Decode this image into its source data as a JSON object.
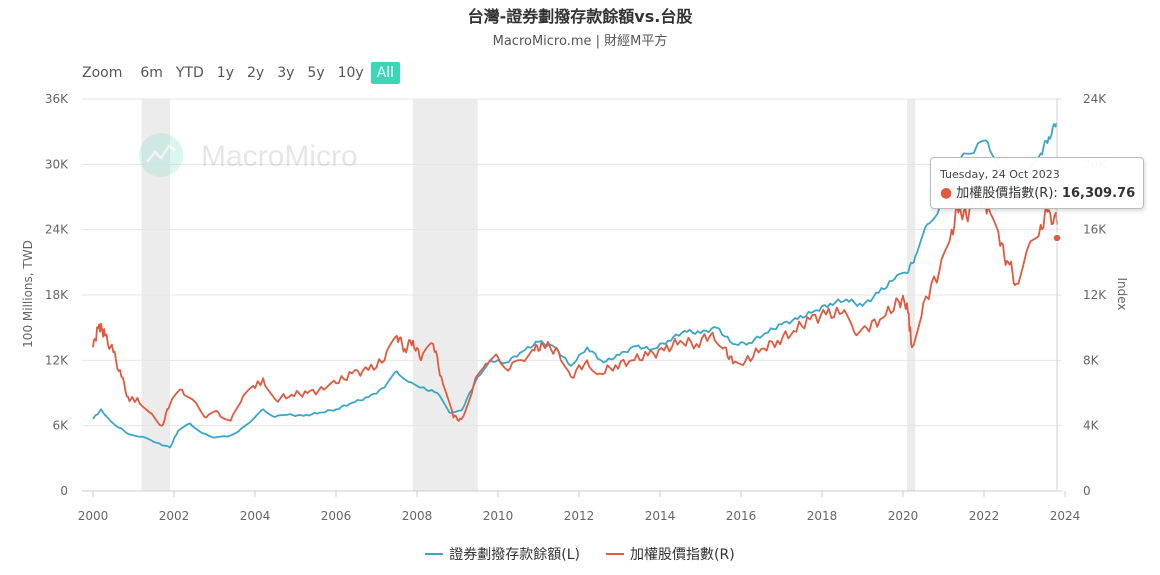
{
  "header": {
    "title": "台灣-證券劃撥存款餘額vs.台股",
    "subtitle": "MacroMicro.me | 財經M平方"
  },
  "watermark": "MacroMicro",
  "zoom": {
    "label": "Zoom",
    "buttons": [
      "6m",
      "YTD",
      "1y",
      "2y",
      "3y",
      "5y",
      "10y",
      "All"
    ],
    "active": "All"
  },
  "tooltip": {
    "date": "Tuesday, 24 Oct 2023",
    "series": "加權股價指數(R):",
    "value": "16,309.76"
  },
  "colors": {
    "left_series": "#3aa6c8",
    "right_series": "#e05a3f",
    "accent": "#3dd6b4",
    "recession": "#ececec"
  },
  "chart_data": {
    "type": "line",
    "x_ticks": [
      "2000",
      "2002",
      "2004",
      "2006",
      "2008",
      "2010",
      "2012",
      "2014",
      "2016",
      "2018",
      "2020",
      "2022",
      "2024"
    ],
    "xlim": [
      2000,
      2024
    ],
    "y_left": {
      "label": "100 Millions, TWD",
      "ticks": [
        "0",
        "6K",
        "12K",
        "18K",
        "24K",
        "30K",
        "36K"
      ],
      "lim": [
        0,
        36000
      ]
    },
    "y_right": {
      "label": "Index",
      "ticks": [
        "0",
        "4K",
        "8K",
        "12K",
        "16K",
        "20K",
        "24K"
      ],
      "lim": [
        0,
        24000
      ]
    },
    "shaded_periods": [
      [
        2001.2,
        2001.9
      ],
      [
        2007.9,
        2009.5
      ],
      [
        2020.1,
        2020.3
      ]
    ],
    "series": [
      {
        "name": "證券劃撥存款餘額(L)",
        "axis": "left",
        "points": [
          [
            2000.0,
            6600
          ],
          [
            2000.2,
            7500
          ],
          [
            2000.5,
            6200
          ],
          [
            2000.9,
            5200
          ],
          [
            2001.2,
            5000
          ],
          [
            2001.5,
            4500
          ],
          [
            2001.9,
            4000
          ],
          [
            2002.1,
            5500
          ],
          [
            2002.4,
            6200
          ],
          [
            2002.7,
            5300
          ],
          [
            2003.0,
            4900
          ],
          [
            2003.3,
            5000
          ],
          [
            2003.6,
            5500
          ],
          [
            2003.9,
            6400
          ],
          [
            2004.2,
            7500
          ],
          [
            2004.5,
            6800
          ],
          [
            2004.8,
            7000
          ],
          [
            2005.2,
            6900
          ],
          [
            2005.6,
            7200
          ],
          [
            2006.0,
            7500
          ],
          [
            2006.4,
            8100
          ],
          [
            2006.8,
            8600
          ],
          [
            2007.2,
            9500
          ],
          [
            2007.5,
            11000
          ],
          [
            2007.8,
            10000
          ],
          [
            2008.1,
            9500
          ],
          [
            2008.5,
            9000
          ],
          [
            2008.8,
            7200
          ],
          [
            2009.1,
            7400
          ],
          [
            2009.5,
            10500
          ],
          [
            2009.8,
            12000
          ],
          [
            2010.2,
            11800
          ],
          [
            2010.6,
            12800
          ],
          [
            2011.0,
            13700
          ],
          [
            2011.4,
            13200
          ],
          [
            2011.8,
            11500
          ],
          [
            2012.2,
            13200
          ],
          [
            2012.6,
            11800
          ],
          [
            2013.0,
            12500
          ],
          [
            2013.4,
            13300
          ],
          [
            2013.8,
            13000
          ],
          [
            2014.2,
            13800
          ],
          [
            2014.6,
            14700
          ],
          [
            2015.0,
            14500
          ],
          [
            2015.4,
            15000
          ],
          [
            2015.8,
            13500
          ],
          [
            2016.2,
            13600
          ],
          [
            2016.6,
            14500
          ],
          [
            2017.0,
            15300
          ],
          [
            2017.4,
            15800
          ],
          [
            2017.8,
            16500
          ],
          [
            2018.2,
            17200
          ],
          [
            2018.6,
            17600
          ],
          [
            2019.0,
            17000
          ],
          [
            2019.4,
            18200
          ],
          [
            2019.8,
            19500
          ],
          [
            2020.1,
            20000
          ],
          [
            2020.3,
            21500
          ],
          [
            2020.6,
            24500
          ],
          [
            2020.9,
            26000
          ],
          [
            2021.2,
            28500
          ],
          [
            2021.5,
            31000
          ],
          [
            2021.8,
            31500
          ],
          [
            2022.1,
            32000
          ],
          [
            2022.4,
            29500
          ],
          [
            2022.8,
            28000
          ],
          [
            2023.1,
            29000
          ],
          [
            2023.4,
            31000
          ],
          [
            2023.6,
            32500
          ],
          [
            2023.8,
            33800
          ]
        ]
      },
      {
        "name": "加權股價指數(R)",
        "axis": "right",
        "points": [
          [
            2000.0,
            8800
          ],
          [
            2000.15,
            10200
          ],
          [
            2000.3,
            9500
          ],
          [
            2000.5,
            8500
          ],
          [
            2000.7,
            7000
          ],
          [
            2000.9,
            5500
          ],
          [
            2001.1,
            5700
          ],
          [
            2001.4,
            4800
          ],
          [
            2001.7,
            4000
          ],
          [
            2001.9,
            5300
          ],
          [
            2002.2,
            6200
          ],
          [
            2002.5,
            5500
          ],
          [
            2002.8,
            4500
          ],
          [
            2003.1,
            4800
          ],
          [
            2003.4,
            4300
          ],
          [
            2003.7,
            5800
          ],
          [
            2004.0,
            6300
          ],
          [
            2004.2,
            6900
          ],
          [
            2004.5,
            5600
          ],
          [
            2004.9,
            5900
          ],
          [
            2005.3,
            6000
          ],
          [
            2005.7,
            6200
          ],
          [
            2006.0,
            6600
          ],
          [
            2006.4,
            7200
          ],
          [
            2006.8,
            7400
          ],
          [
            2007.2,
            8000
          ],
          [
            2007.5,
            9500
          ],
          [
            2007.7,
            8700
          ],
          [
            2007.9,
            9200
          ],
          [
            2008.1,
            8000
          ],
          [
            2008.4,
            9000
          ],
          [
            2008.6,
            7000
          ],
          [
            2008.9,
            4500
          ],
          [
            2009.1,
            4400
          ],
          [
            2009.4,
            6500
          ],
          [
            2009.7,
            7800
          ],
          [
            2010.0,
            8200
          ],
          [
            2010.3,
            7500
          ],
          [
            2010.6,
            8000
          ],
          [
            2010.9,
            8600
          ],
          [
            2011.1,
            9000
          ],
          [
            2011.5,
            8500
          ],
          [
            2011.8,
            7000
          ],
          [
            2012.2,
            8000
          ],
          [
            2012.5,
            7200
          ],
          [
            2012.9,
            7700
          ],
          [
            2013.3,
            8000
          ],
          [
            2013.7,
            8300
          ],
          [
            2014.1,
            8600
          ],
          [
            2014.5,
            9200
          ],
          [
            2014.9,
            9000
          ],
          [
            2015.3,
            9700
          ],
          [
            2015.6,
            8800
          ],
          [
            2015.8,
            7800
          ],
          [
            2016.1,
            7900
          ],
          [
            2016.5,
            8700
          ],
          [
            2016.9,
            9200
          ],
          [
            2017.3,
            9800
          ],
          [
            2017.7,
            10500
          ],
          [
            2018.1,
            10800
          ],
          [
            2018.5,
            10900
          ],
          [
            2018.8,
            9700
          ],
          [
            2019.1,
            10000
          ],
          [
            2019.5,
            10600
          ],
          [
            2019.9,
            11600
          ],
          [
            2020.1,
            11500
          ],
          [
            2020.22,
            8800
          ],
          [
            2020.5,
            11500
          ],
          [
            2020.9,
            13500
          ],
          [
            2021.2,
            16000
          ],
          [
            2021.4,
            17500
          ],
          [
            2021.6,
            16500
          ],
          [
            2021.9,
            18000
          ],
          [
            2022.1,
            17500
          ],
          [
            2022.4,
            15000
          ],
          [
            2022.6,
            14000
          ],
          [
            2022.8,
            12700
          ],
          [
            2023.1,
            15000
          ],
          [
            2023.4,
            16300
          ],
          [
            2023.6,
            17200
          ],
          [
            2023.81,
            16309.76
          ]
        ]
      }
    ]
  }
}
